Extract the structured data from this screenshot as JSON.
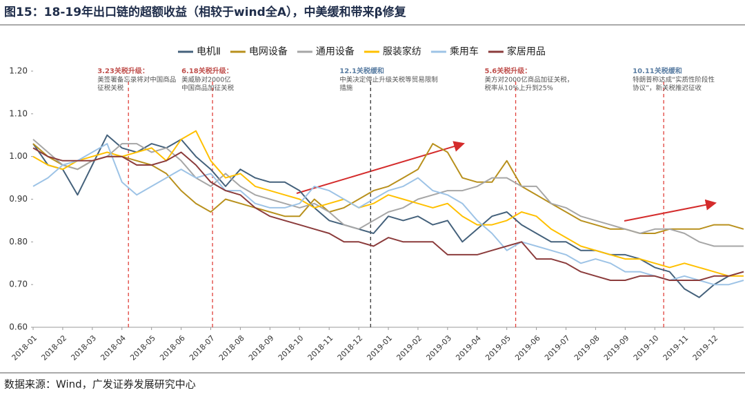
{
  "header": {
    "title": "图15：18-19年出口链的超额收益（相较于wind全A），中美缓和带来β修复"
  },
  "footer": {
    "source": "数据来源：Wind，广发证券发展研究中心"
  },
  "chart_data": {
    "type": "line",
    "x": [
      0,
      0.5,
      1,
      1.5,
      2,
      2.5,
      3,
      3.5,
      4,
      4.5,
      5,
      5.5,
      6,
      6.5,
      7,
      7.5,
      8,
      8.5,
      9,
      9.5,
      10,
      10.5,
      11,
      11.5,
      12,
      12.5,
      13,
      13.5,
      14,
      14.5,
      15,
      15.5,
      16,
      16.5,
      17,
      17.5,
      18,
      18.5,
      19,
      19.5,
      20,
      20.5,
      21,
      21.5,
      22,
      22.5,
      23,
      23.5,
      24
    ],
    "xlim": [
      0,
      24
    ],
    "xticks": [
      {
        "value": 0,
        "label": "2018-01"
      },
      {
        "value": 1,
        "label": "2018-02"
      },
      {
        "value": 2,
        "label": "2018-03"
      },
      {
        "value": 3,
        "label": "2018-04"
      },
      {
        "value": 4,
        "label": "2018-05"
      },
      {
        "value": 5,
        "label": "2018-06"
      },
      {
        "value": 6,
        "label": "2018-07"
      },
      {
        "value": 7,
        "label": "2018-08"
      },
      {
        "value": 8,
        "label": "2018-09"
      },
      {
        "value": 9,
        "label": "2018-10"
      },
      {
        "value": 10,
        "label": "2018-11"
      },
      {
        "value": 11,
        "label": "2018-12"
      },
      {
        "value": 12,
        "label": "2019-01"
      },
      {
        "value": 13,
        "label": "2019-02"
      },
      {
        "value": 14,
        "label": "2019-03"
      },
      {
        "value": 15,
        "label": "2019-04"
      },
      {
        "value": 16,
        "label": "2019-05"
      },
      {
        "value": 17,
        "label": "2019-06"
      },
      {
        "value": 18,
        "label": "2019-07"
      },
      {
        "value": 19,
        "label": "2019-08"
      },
      {
        "value": 20,
        "label": "2019-09"
      },
      {
        "value": 21,
        "label": "2019-10"
      },
      {
        "value": 22,
        "label": "2019-11"
      },
      {
        "value": 23,
        "label": "2019-12"
      }
    ],
    "ylim": [
      0.6,
      1.2
    ],
    "yticks": [
      {
        "value": 0.6,
        "label": "0.60"
      },
      {
        "value": 0.7,
        "label": "0.70"
      },
      {
        "value": 0.8,
        "label": "0.80"
      },
      {
        "value": 0.9,
        "label": "0.90"
      },
      {
        "value": 1.0,
        "label": "1.00"
      },
      {
        "value": 1.1,
        "label": "1.10"
      },
      {
        "value": 1.2,
        "label": "1.20"
      }
    ],
    "grid": false,
    "series": [
      {
        "name": "电机Ⅱ",
        "color": "#44617b",
        "values": [
          1.03,
          0.98,
          0.97,
          0.91,
          0.98,
          1.05,
          1.02,
          1.01,
          1.03,
          1.02,
          1.04,
          1.0,
          0.97,
          0.93,
          0.97,
          0.95,
          0.94,
          0.94,
          0.92,
          0.88,
          0.85,
          0.84,
          0.83,
          0.82,
          0.86,
          0.85,
          0.86,
          0.84,
          0.85,
          0.8,
          0.83,
          0.86,
          0.87,
          0.84,
          0.82,
          0.8,
          0.8,
          0.78,
          0.78,
          0.77,
          0.77,
          0.76,
          0.74,
          0.73,
          0.69,
          0.67,
          0.7,
          0.72,
          0.73
        ]
      },
      {
        "name": "电网设备",
        "color": "#b8901c",
        "values": [
          1.03,
          1.0,
          0.98,
          0.97,
          0.99,
          1.0,
          1.0,
          0.99,
          0.98,
          0.96,
          0.92,
          0.89,
          0.87,
          0.9,
          0.89,
          0.88,
          0.87,
          0.86,
          0.86,
          0.9,
          0.87,
          0.88,
          0.9,
          0.92,
          0.93,
          0.95,
          0.97,
          1.03,
          1.01,
          0.95,
          0.94,
          0.94,
          0.99,
          0.93,
          0.91,
          0.89,
          0.87,
          0.85,
          0.84,
          0.83,
          0.83,
          0.82,
          0.82,
          0.83,
          0.83,
          0.83,
          0.84,
          0.84,
          0.83
        ]
      },
      {
        "name": "通用设备",
        "color": "#a6a6a6",
        "values": [
          1.04,
          1.01,
          0.98,
          0.97,
          0.99,
          1.0,
          1.03,
          1.03,
          1.01,
          1.02,
          0.99,
          0.95,
          0.93,
          0.96,
          0.93,
          0.91,
          0.9,
          0.89,
          0.88,
          0.89,
          0.87,
          0.84,
          0.83,
          0.85,
          0.87,
          0.88,
          0.9,
          0.91,
          0.92,
          0.92,
          0.93,
          0.95,
          0.95,
          0.93,
          0.93,
          0.89,
          0.88,
          0.86,
          0.85,
          0.84,
          0.83,
          0.82,
          0.83,
          0.83,
          0.82,
          0.8,
          0.79,
          0.79,
          0.79
        ]
      },
      {
        "name": "服装家纺",
        "color": "#ffc000",
        "values": [
          1.0,
          0.98,
          0.97,
          0.99,
          1.0,
          1.01,
          1.0,
          1.01,
          1.02,
          0.99,
          1.04,
          1.06,
          0.99,
          0.95,
          0.96,
          0.93,
          0.92,
          0.91,
          0.9,
          0.88,
          0.89,
          0.9,
          0.88,
          0.89,
          0.91,
          0.9,
          0.89,
          0.88,
          0.89,
          0.86,
          0.84,
          0.84,
          0.85,
          0.87,
          0.86,
          0.83,
          0.81,
          0.79,
          0.78,
          0.77,
          0.76,
          0.76,
          0.75,
          0.74,
          0.75,
          0.74,
          0.73,
          0.72,
          0.72
        ]
      },
      {
        "name": "乘用车",
        "color": "#9dc3e6",
        "values": [
          0.93,
          0.95,
          0.98,
          0.99,
          1.01,
          1.03,
          0.94,
          0.91,
          0.93,
          0.95,
          0.97,
          0.95,
          0.96,
          0.92,
          0.92,
          0.89,
          0.88,
          0.88,
          0.89,
          0.93,
          0.92,
          0.9,
          0.88,
          0.9,
          0.92,
          0.93,
          0.95,
          0.92,
          0.91,
          0.89,
          0.85,
          0.82,
          0.78,
          0.8,
          0.79,
          0.78,
          0.77,
          0.75,
          0.76,
          0.75,
          0.73,
          0.73,
          0.72,
          0.71,
          0.72,
          0.71,
          0.7,
          0.7,
          0.71
        ]
      },
      {
        "name": "家居用品",
        "color": "#8b3b3b",
        "values": [
          1.02,
          1.0,
          0.99,
          0.99,
          0.99,
          1.0,
          1.0,
          0.98,
          0.98,
          0.99,
          1.01,
          0.98,
          0.94,
          0.92,
          0.91,
          0.88,
          0.86,
          0.85,
          0.84,
          0.83,
          0.82,
          0.8,
          0.8,
          0.79,
          0.81,
          0.8,
          0.8,
          0.8,
          0.77,
          0.77,
          0.77,
          0.78,
          0.79,
          0.8,
          0.76,
          0.76,
          0.75,
          0.73,
          0.72,
          0.71,
          0.71,
          0.72,
          0.72,
          0.71,
          0.71,
          0.71,
          0.72,
          0.72,
          0.73
        ]
      }
    ],
    "annotations": [
      {
        "x": 3.22,
        "line_color": "#e0403a",
        "title_color": "#c0504d",
        "title": "3.23关税升级：",
        "text": [
          "美签署备忘录将对中国商品",
          "征税关税"
        ]
      },
      {
        "x": 6.06,
        "line_color": "#e0403a",
        "title_color": "#c0504d",
        "title": "6.18关税升级：",
        "text": [
          "美威胁对2000亿",
          "中国商品加征关税"
        ]
      },
      {
        "x": 11.4,
        "line_color": "#333333",
        "title_color": "#5b7ea3",
        "title": "12.1关税缓和",
        "text": [
          "中美决定停止升级关税等贸易限制",
          "措施"
        ]
      },
      {
        "x": 16.3,
        "line_color": "#e0403a",
        "title_color": "#c0504d",
        "title": "5.6关税升级：",
        "text": [
          "美方对2000亿商品加征关税，",
          "税率从10%上升到25%"
        ]
      },
      {
        "x": 21.3,
        "line_color": "#e0403a",
        "title_color": "#5b7ea3",
        "title": "10.11关税缓和",
        "text": [
          "特朗普称达成“实质性阶段性",
          "协议”，新关税推迟征收"
        ]
      }
    ]
  }
}
